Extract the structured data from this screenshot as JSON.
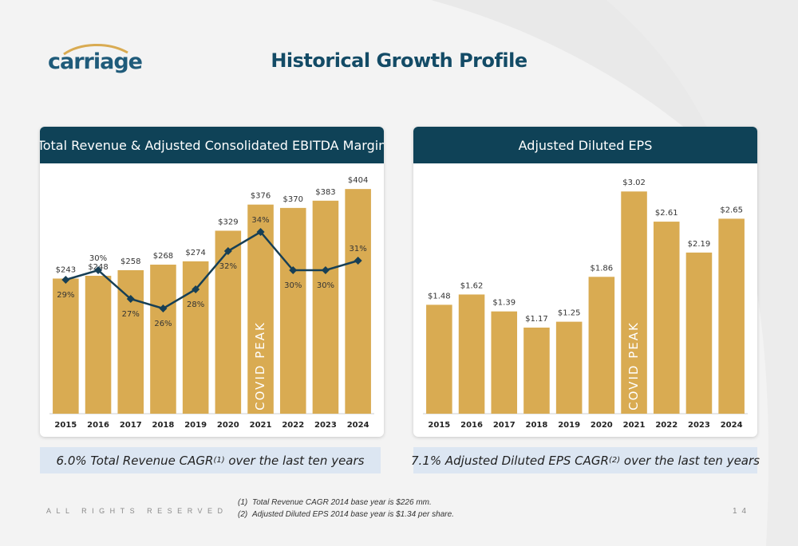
{
  "logo": {
    "text": "carriage"
  },
  "page_title": "Historical Growth Profile",
  "left_panel": {
    "title": "Total Revenue & Adjusted Consolidated EBITDA Margin"
  },
  "right_panel": {
    "title": "Adjusted Diluted EPS"
  },
  "captions": {
    "left": {
      "before": "6.0% Total Revenue CAGR",
      "sup": "(1)",
      "after": " over the last ten years"
    },
    "right": {
      "before": "7.1% Adjusted Diluted EPS CAGR",
      "sup": "(2)",
      "after": " over the last ten years"
    }
  },
  "footer": {
    "rights": "ALL RIGHTS RESERVED",
    "page_number": "14",
    "footnotes": [
      {
        "num": "(1)",
        "text": "Total Revenue CAGR 2014 base year is $226 mm."
      },
      {
        "num": "(2)",
        "text": "Adjusted Diluted EPS 2014 base year is $1.34 per share."
      }
    ]
  },
  "colors": {
    "bar": "#d9ab52",
    "line": "#173f55",
    "header": "#0f4257",
    "title": "#134b66",
    "caption_bg": "#dce6f2"
  },
  "chart_data": [
    {
      "type": "bar",
      "categories": [
        "2015",
        "2016",
        "2017",
        "2018",
        "2019",
        "2020",
        "2021",
        "2022",
        "2023",
        "2024"
      ],
      "series": [
        {
          "values": [
            243,
            248,
            258,
            268,
            274,
            329,
            376,
            370,
            383,
            404
          ],
          "labels": [
            "$243",
            "$248",
            "$258",
            "$268",
            "$274",
            "$329",
            "$376",
            "$370",
            "$383",
            "$404"
          ]
        },
        {
          "type": "line",
          "values": [
            29,
            30,
            27,
            26,
            28,
            32,
            34,
            30,
            30,
            31
          ],
          "labels": [
            "29%",
            "30%",
            "27%",
            "26%",
            "28%",
            "32%",
            "34%",
            "30%",
            "30%",
            "31%"
          ]
        }
      ],
      "annotation": {
        "text": "COVID PEAK",
        "category": "2021"
      },
      "ylim": [
        0,
        430
      ],
      "ylim_line": [
        15,
        40
      ],
      "grid": false
    },
    {
      "type": "bar",
      "categories": [
        "2015",
        "2016",
        "2017",
        "2018",
        "2019",
        "2020",
        "2021",
        "2022",
        "2023",
        "2024"
      ],
      "values": [
        1.48,
        1.62,
        1.39,
        1.17,
        1.25,
        1.86,
        3.02,
        2.61,
        2.19,
        2.65
      ],
      "labels": [
        "$1.48",
        "$1.62",
        "$1.39",
        "$1.17",
        "$1.25",
        "$1.86",
        "$3.02",
        "$2.61",
        "$2.19",
        "$2.65"
      ],
      "annotation": {
        "text": "COVID PEAK",
        "category": "2021"
      },
      "ylim": [
        0,
        3.25
      ],
      "grid": false
    }
  ]
}
